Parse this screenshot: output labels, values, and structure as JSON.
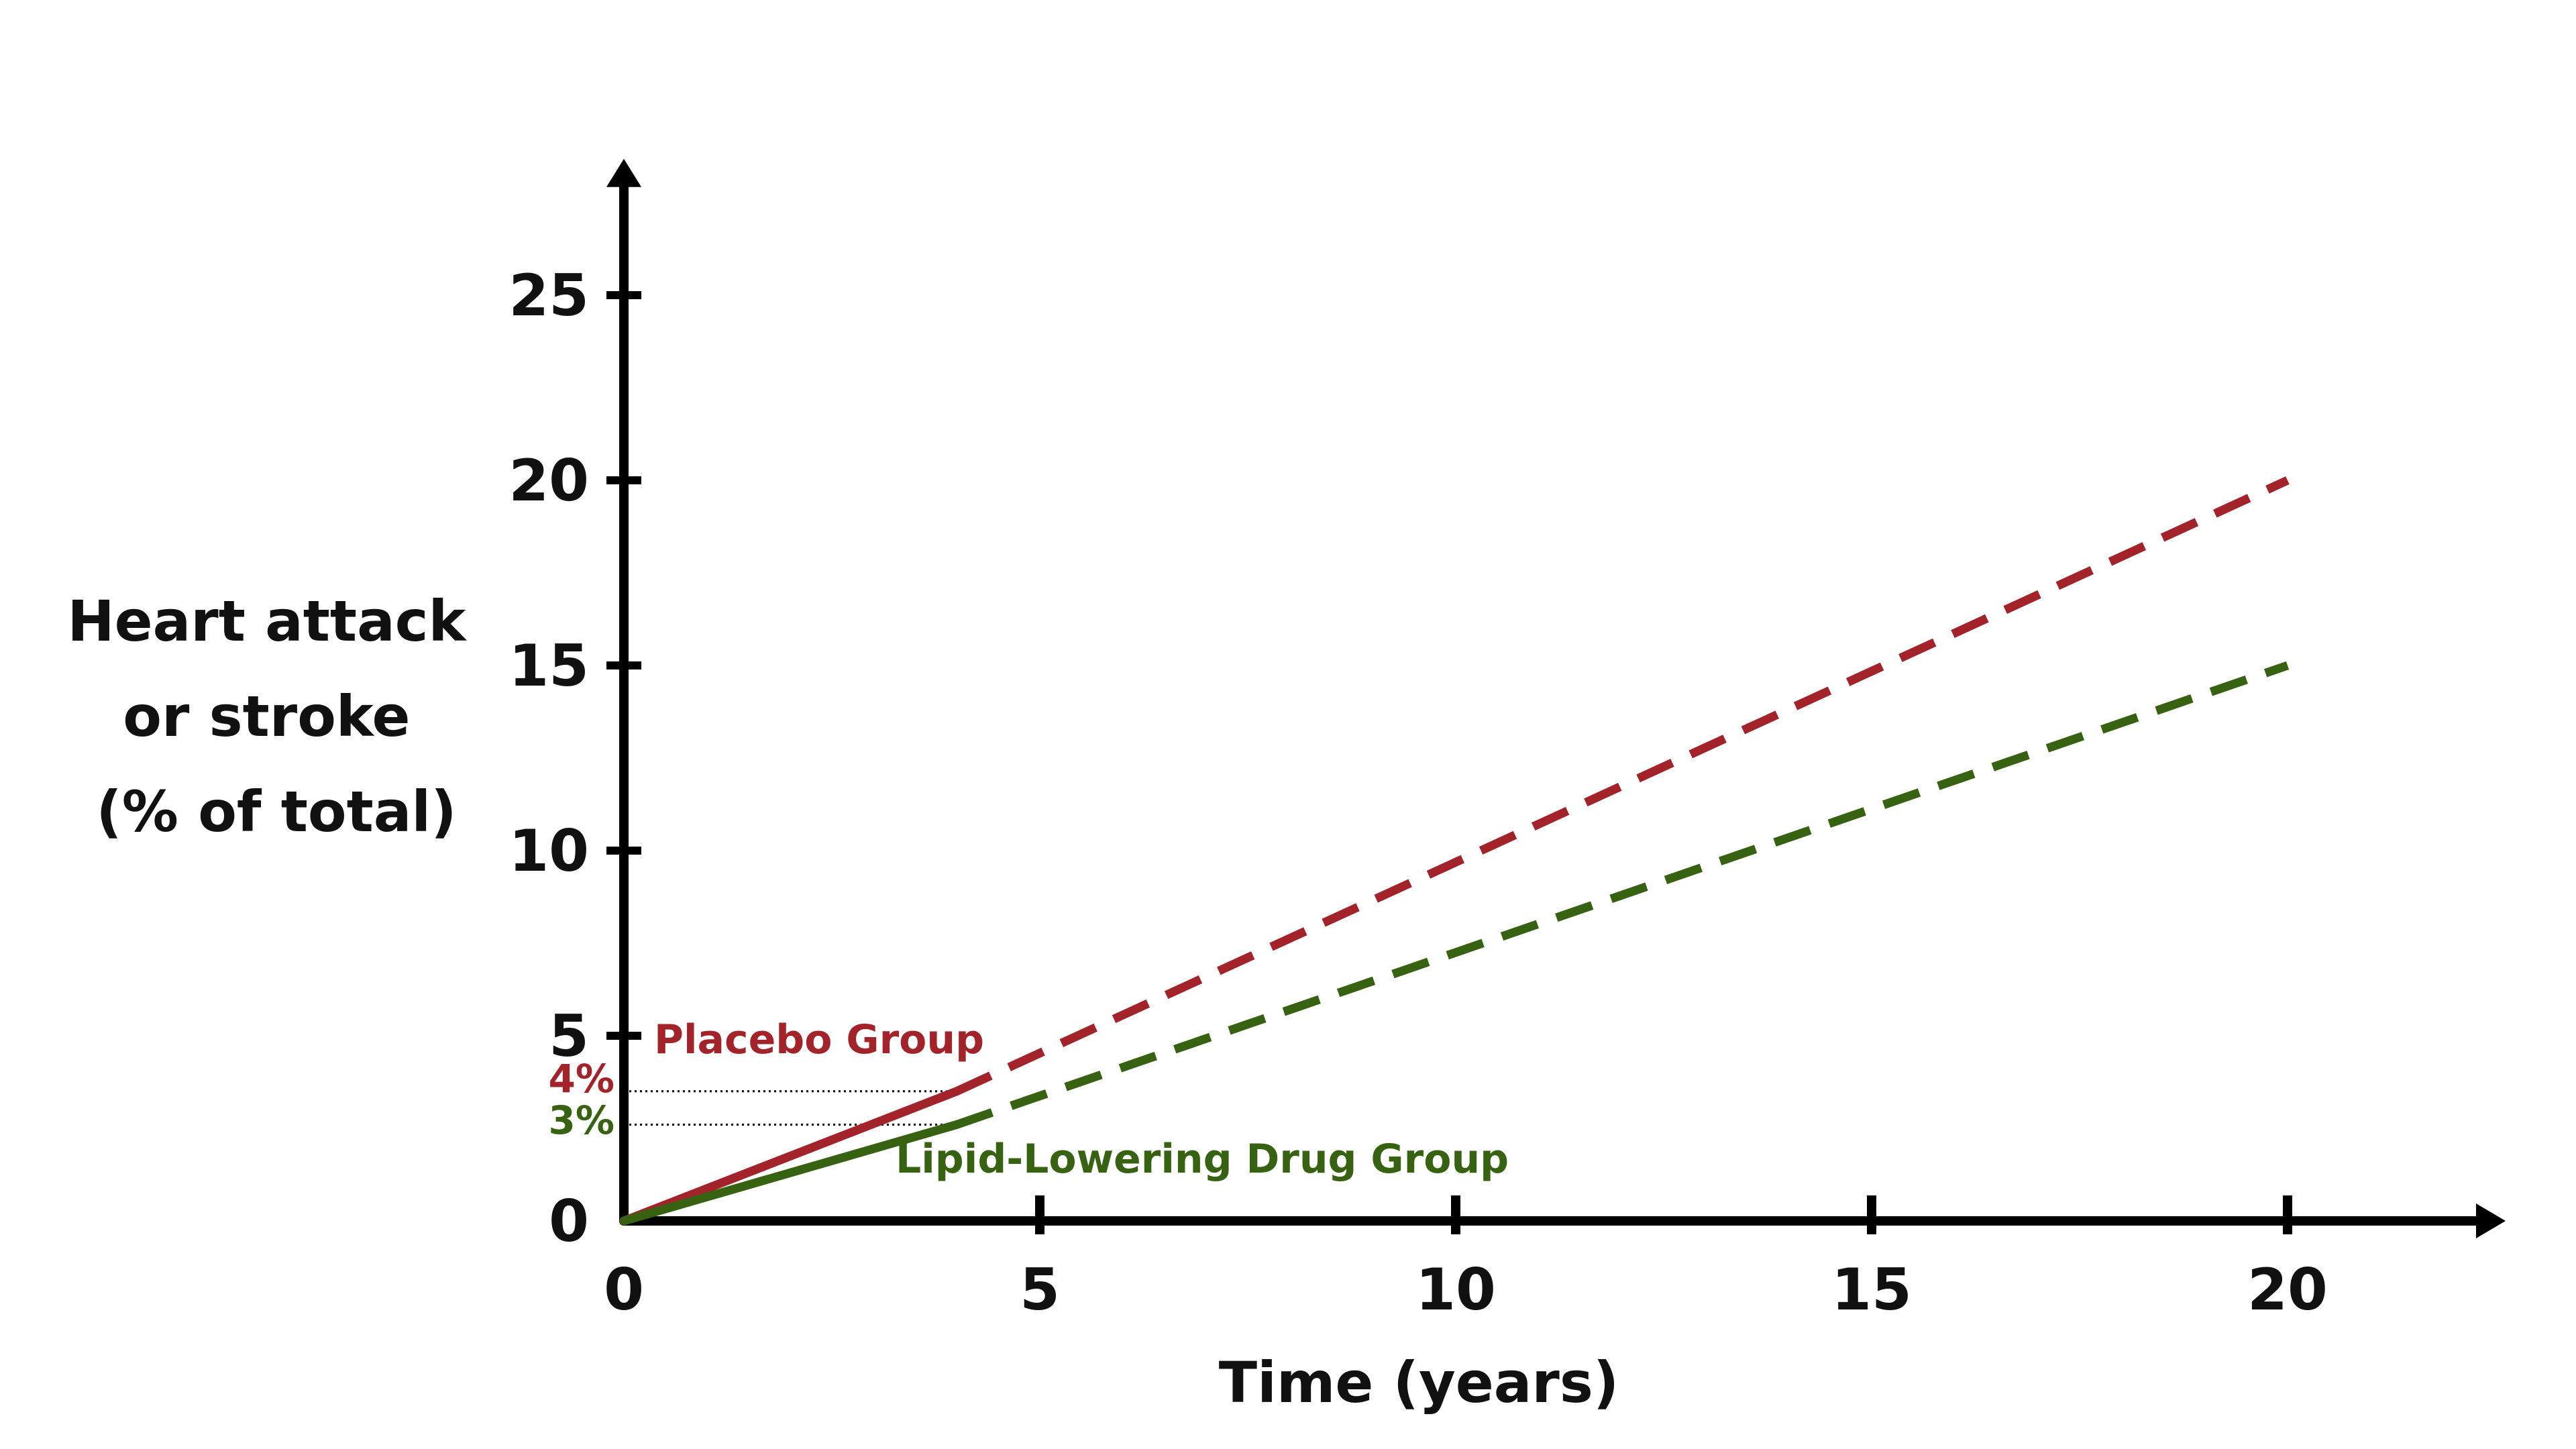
{
  "chart_data": {
    "type": "line",
    "title": "",
    "xlabel": "Time (years)",
    "ylabel_lines": [
      "Heart attack",
      "or stroke",
      "(% of total)"
    ],
    "xlim": [
      0,
      22.5
    ],
    "ylim": [
      0,
      28.5
    ],
    "x_ticks": [
      0,
      5,
      10,
      15,
      20
    ],
    "x_tick_labels": [
      "0",
      "5",
      "10",
      "15",
      "20"
    ],
    "y_ticks": [
      0,
      5,
      10,
      15,
      20,
      25
    ],
    "y_tick_labels": [
      "0",
      "5",
      "10",
      "15",
      "20",
      "25"
    ],
    "grid": false,
    "series": [
      {
        "name": "Placebo Group",
        "color": "#a3232b",
        "observed": [
          [
            0,
            0
          ],
          [
            4,
            3.5
          ]
        ],
        "projected": [
          [
            4,
            3.5
          ],
          [
            20,
            20
          ]
        ],
        "reference_label": "4%",
        "reference_value": 3.5
      },
      {
        "name": "Lipid-Lowering Drug Group",
        "color": "#376212",
        "observed": [
          [
            0,
            0
          ],
          [
            4,
            2.6
          ]
        ],
        "projected": [
          [
            4,
            2.6
          ],
          [
            20,
            15
          ]
        ],
        "reference_label": "3%",
        "reference_value": 2.6
      }
    ],
    "axis_color": "#000000"
  }
}
